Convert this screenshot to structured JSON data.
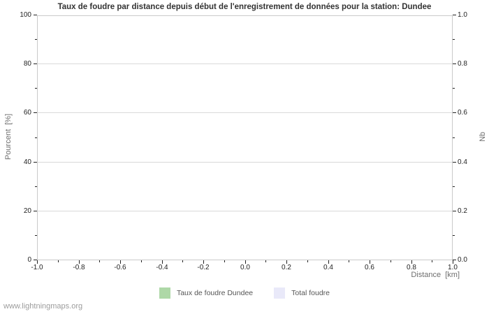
{
  "chart": {
    "title": "Taux de foudre par distance depuis début de l'enregistrement de données pour la station: Dundee",
    "y_left": {
      "label": "Pourcent  [%]",
      "ticks": [
        "0",
        "20",
        "40",
        "60",
        "80",
        "100"
      ]
    },
    "y_right": {
      "label": "Nb",
      "ticks": [
        "0.0",
        "0.2",
        "0.4",
        "0.6",
        "0.8",
        "1.0"
      ]
    },
    "x": {
      "label": "Distance  [km]",
      "ticks": [
        "-1.0",
        "-0.8",
        "-0.6",
        "-0.4",
        "-0.2",
        "0.0",
        "0.2",
        "0.4",
        "0.6",
        "0.8",
        "1.0"
      ]
    },
    "legend": {
      "items": [
        {
          "label": "Taux de foudre Dundee",
          "color": "#aed8a7"
        },
        {
          "label": "Total foudre",
          "color": "#e9e9f9"
        }
      ]
    },
    "watermark": "www.lightningmaps.org",
    "colors": {
      "gridline": "#d9d9d9",
      "plot_border": "#c9c9c9",
      "tick": "#222222",
      "tick_label": "#222222",
      "title": "#333333",
      "axis_label": "#6e6e6e",
      "legend_text": "#555555",
      "watermark": "#9c9c9c"
    }
  },
  "chart_data": {
    "type": "bar",
    "title": "Taux de foudre par distance depuis début de l'enregistrement de données pour la station: Dundee",
    "xlabel": "Distance  [km]",
    "ylabel_left": "Pourcent  [%]",
    "ylabel_right": "Nb",
    "xlim": [
      -1.0,
      1.0
    ],
    "ylim_left": [
      0,
      100
    ],
    "ylim_right": [
      0.0,
      1.0
    ],
    "x_major_ticks": [
      -1.0,
      -0.8,
      -0.6,
      -0.4,
      -0.2,
      0.0,
      0.2,
      0.4,
      0.6,
      0.8,
      1.0
    ],
    "y_left_major_ticks": [
      0,
      20,
      40,
      60,
      80,
      100
    ],
    "y_right_major_ticks": [
      0.0,
      0.2,
      0.4,
      0.6,
      0.8,
      1.0
    ],
    "grid": "horizontal-major-only",
    "legend_position": "bottom-center",
    "series": [
      {
        "name": "Taux de foudre Dundee",
        "color": "#aed8a7",
        "axis": "left",
        "x": [],
        "values": []
      },
      {
        "name": "Total foudre",
        "color": "#e9e9f9",
        "axis": "right",
        "x": [],
        "values": []
      }
    ]
  }
}
